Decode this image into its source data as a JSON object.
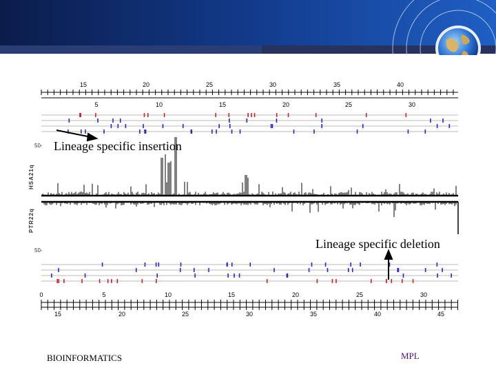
{
  "footer": {
    "left": "BIOINFORMATICS",
    "right": "MPL"
  },
  "annotations": {
    "insertion": "Lineage specific insertion",
    "deletion": "Lineage specific deletion"
  },
  "figure": {
    "axis_top_outer": [
      "15",
      "20",
      "25",
      "30",
      "35",
      "40"
    ],
    "axis_top_inner": [
      "5",
      "10",
      "15",
      "20",
      "25",
      "30"
    ],
    "axis_bottom_inner": [
      "0",
      "5",
      "10",
      "15",
      "20",
      "25",
      "30"
    ],
    "axis_bottom_outer": [
      "15",
      "20",
      "25",
      "30",
      "35",
      "40",
      "45"
    ],
    "ylabel_upper": "HSA21q",
    "ylabel_lower": "PTR22q",
    "scale_upper": "50-",
    "scale_lower": "50-",
    "colors": {
      "red": "#c0282d",
      "blue": "#2a2ab8",
      "track": "#b8b8b8"
    }
  }
}
